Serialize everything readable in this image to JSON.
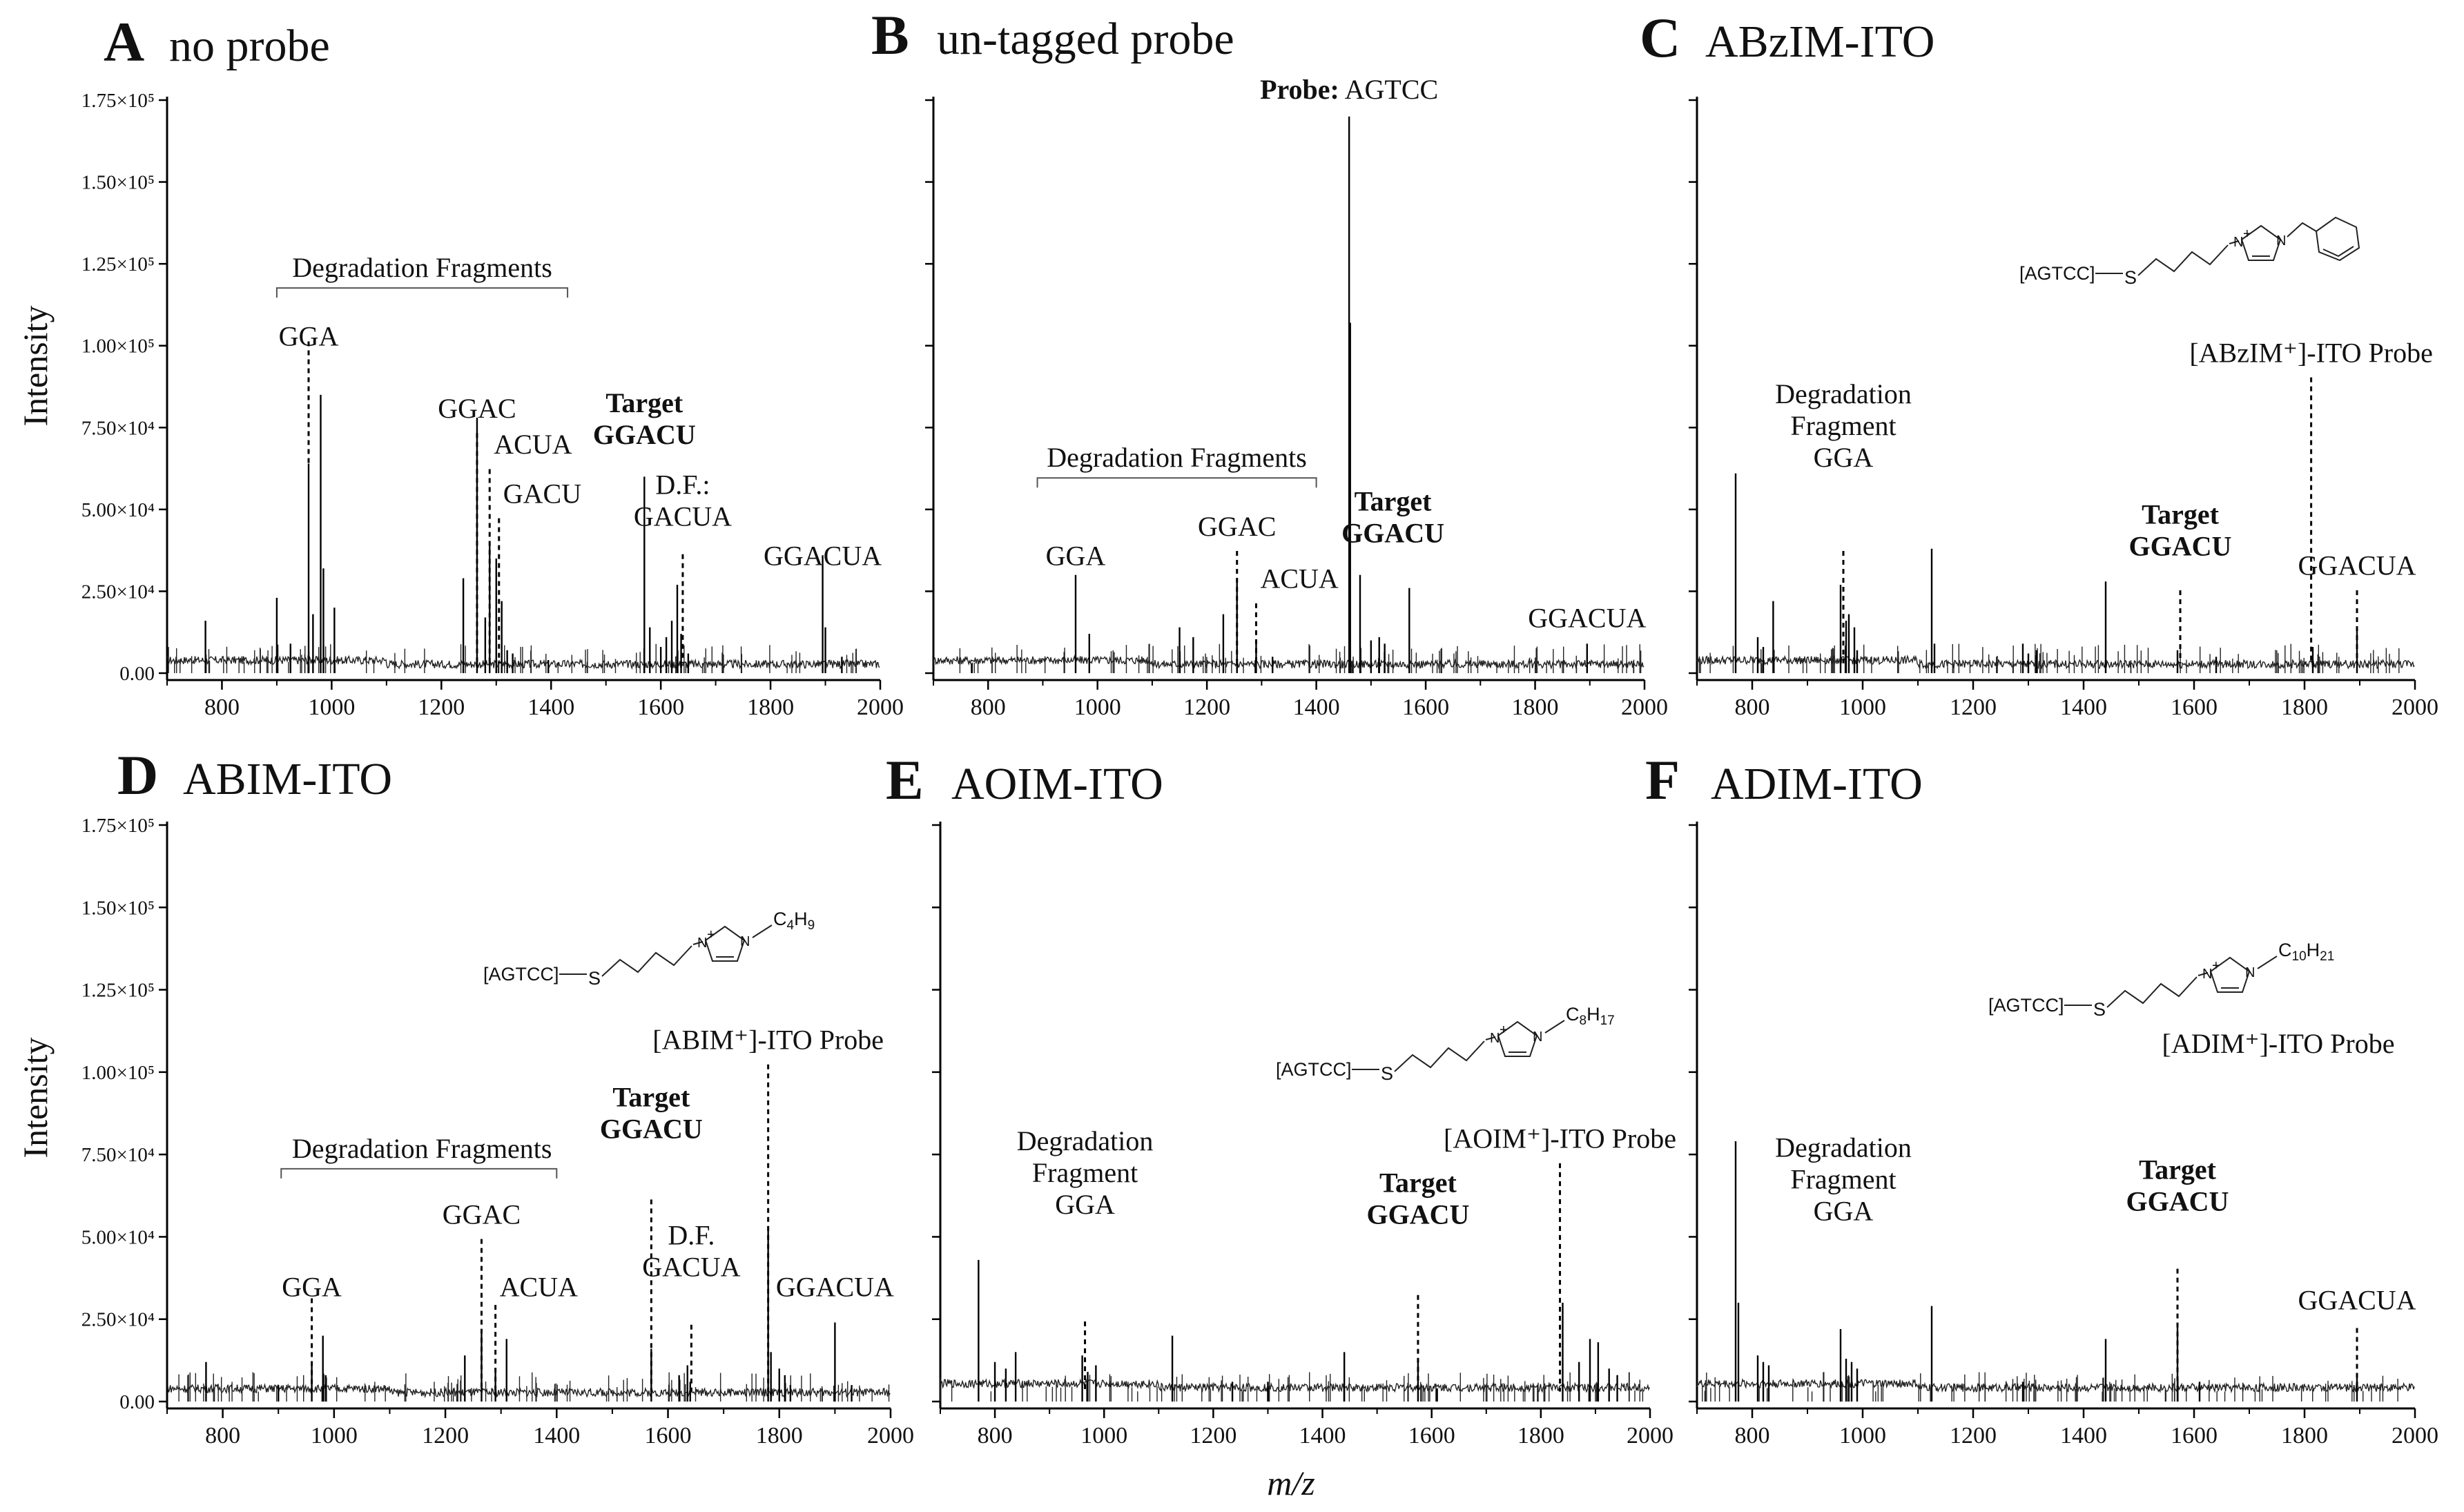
{
  "figure": {
    "x_axis_label": "m/z",
    "y_axis_label": "Intensity",
    "chart_data": [
      {
        "id": "A",
        "letter": "A",
        "title": "no probe",
        "type": "line",
        "xlim": [
          700,
          2000
        ],
        "ylim": [
          0,
          175000
        ],
        "x_ticks": [
          800,
          1000,
          1200,
          1400,
          1600,
          1800,
          2000
        ],
        "y_tick_labels": [
          "0.00",
          "2.50×10⁴",
          "5.00×10⁴",
          "7.50×10⁴",
          "1.00×10⁵",
          "1.25×10⁵",
          "1.50×10⁵",
          "1.75×10⁵"
        ],
        "peaks": [
          [
            770,
            16000
          ],
          [
            900,
            23000
          ],
          [
            925,
            9000
          ],
          [
            958,
            64000
          ],
          [
            966,
            18000
          ],
          [
            980,
            85000
          ],
          [
            985,
            32000
          ],
          [
            1005,
            20000
          ],
          [
            1240,
            29000
          ],
          [
            1265,
            78000
          ],
          [
            1280,
            17000
          ],
          [
            1288,
            40000
          ],
          [
            1300,
            35000
          ],
          [
            1310,
            22000
          ],
          [
            1320,
            7000
          ],
          [
            1330,
            6000
          ],
          [
            1395,
            4000
          ],
          [
            1570,
            60000
          ],
          [
            1580,
            14000
          ],
          [
            1600,
            8000
          ],
          [
            1610,
            11000
          ],
          [
            1620,
            16000
          ],
          [
            1630,
            27000
          ],
          [
            1637,
            12000
          ],
          [
            1650,
            6000
          ],
          [
            1895,
            36000
          ],
          [
            1900,
            14000
          ],
          [
            1930,
            5000
          ]
        ],
        "annotations": [
          {
            "lines": [
              "Degradation Fragments"
            ],
            "x": 1165,
            "y": 121000,
            "bracket": [
              900,
              1430
            ],
            "bold": false
          },
          {
            "lines": [
              "GGA"
            ],
            "x": 958,
            "y": 100000,
            "line_top": 103000,
            "line_bottom": 64000,
            "bold": false
          },
          {
            "lines": [
              "GGAC"
            ],
            "x": 1265,
            "y": 78000,
            "line_top": 75000,
            "line_bottom": 3000,
            "bold": false
          },
          {
            "lines": [
              "ACUA"
            ],
            "x": 1288,
            "y": 67000,
            "line_top": 64000,
            "line_bottom": 3000,
            "bold": false,
            "anchor": "start"
          },
          {
            "lines": [
              "GACU"
            ],
            "x": 1305,
            "y": 52000,
            "line_top": 49000,
            "line_bottom": 3000,
            "bold": false,
            "anchor": "start"
          },
          {
            "lines": [
              "Target",
              "GGACU"
            ],
            "x": 1570,
            "y": 70000,
            "line_top": null,
            "line_bottom": null,
            "bold": true
          },
          {
            "lines": [
              "D.F.:",
              "GACUA"
            ],
            "x": 1640,
            "y": 45000,
            "line_top": 38000,
            "line_bottom": 3000,
            "bold": false
          },
          {
            "lines": [
              "GGACUA"
            ],
            "x": 1895,
            "y": 33000,
            "line_top": null,
            "line_bottom": null,
            "bold": false
          }
        ]
      },
      {
        "id": "B",
        "letter": "B",
        "title": "un-tagged probe",
        "type": "line",
        "xlim": [
          700,
          2000
        ],
        "ylim": [
          0,
          175000
        ],
        "x_ticks": [
          800,
          1000,
          1200,
          1400,
          1600,
          1800,
          2000
        ],
        "y_tick_labels": [],
        "peaks": [
          [
            770,
            3000
          ],
          [
            960,
            30000
          ],
          [
            985,
            12000
          ],
          [
            1150,
            14000
          ],
          [
            1175,
            11000
          ],
          [
            1230,
            18000
          ],
          [
            1255,
            29000
          ],
          [
            1290,
            9000
          ],
          [
            1320,
            5000
          ],
          [
            1460,
            170000
          ],
          [
            1462,
            107000
          ],
          [
            1480,
            30000
          ],
          [
            1500,
            10000
          ],
          [
            1515,
            11000
          ],
          [
            1525,
            9000
          ],
          [
            1570,
            26000
          ],
          [
            1895,
            9000
          ]
        ],
        "annotations": [
          {
            "lines": [
              "Degradation Fragments"
            ],
            "x": 1145,
            "y": 63000,
            "bracket": [
              890,
              1400
            ],
            "bold": false
          },
          {
            "lines": [
              "GGA"
            ],
            "x": 960,
            "y": 33000,
            "line_top": null,
            "line_bottom": null,
            "bold": false
          },
          {
            "lines": [
              "GGAC"
            ],
            "x": 1255,
            "y": 42000,
            "line_top": 39000,
            "line_bottom": 3000,
            "bold": false
          },
          {
            "lines": [
              "ACUA"
            ],
            "x": 1290,
            "y": 26000,
            "line_top": 23000,
            "line_bottom": 3000,
            "bold": false,
            "anchor": "start"
          },
          {
            "lines": [
              "Target",
              "GGACU"
            ],
            "x": 1540,
            "y": 40000,
            "line_top": null,
            "line_bottom": null,
            "bold": true
          },
          {
            "lines": [
              "GGACUA"
            ],
            "x": 1895,
            "y": 14000,
            "line_top": null,
            "line_bottom": null,
            "bold": false
          }
        ],
        "probe_label": {
          "bold": "Probe:",
          "text": " AGTCC"
        }
      },
      {
        "id": "C",
        "letter": "C",
        "title": "ABzIM-ITO",
        "type": "line",
        "xlim": [
          700,
          2000
        ],
        "ylim": [
          0,
          175000
        ],
        "x_ticks": [
          800,
          1000,
          1200,
          1400,
          1600,
          1800,
          2000
        ],
        "y_tick_labels": [],
        "peaks": [
          [
            770,
            61000
          ],
          [
            810,
            11000
          ],
          [
            820,
            8000
          ],
          [
            838,
            22000
          ],
          [
            960,
            27000
          ],
          [
            970,
            16000
          ],
          [
            975,
            18000
          ],
          [
            985,
            14000
          ],
          [
            990,
            7000
          ],
          [
            1125,
            38000
          ],
          [
            1130,
            9000
          ],
          [
            1290,
            9000
          ],
          [
            1300,
            6000
          ],
          [
            1315,
            7000
          ],
          [
            1440,
            28000
          ],
          [
            1570,
            7000
          ],
          [
            1640,
            5000
          ],
          [
            1815,
            8000
          ],
          [
            1895,
            13000
          ]
        ],
        "annotations": [
          {
            "lines": [
              "Degradation",
              "Fragment",
              "GGA"
            ],
            "x": 965,
            "y": 63000,
            "line_top": 39000,
            "line_bottom": 3000,
            "bold": false
          },
          {
            "lines": [
              "Target",
              "GGACU"
            ],
            "x": 1575,
            "y": 36000,
            "line_top": 27000,
            "line_bottom": 3000,
            "bold": true
          },
          {
            "lines": [
              "[ABzIM⁺]-ITO Probe"
            ],
            "x": 1812,
            "y": 95000,
            "line_top": 92000,
            "line_bottom": 3000,
            "bold": false
          },
          {
            "lines": [
              "GGACUA"
            ],
            "x": 1895,
            "y": 30000,
            "line_top": 27000,
            "line_bottom": 3000,
            "bold": false
          }
        ],
        "structure": {
          "tag": "[AGTCC]",
          "atom_s": "S",
          "atom_n": "N",
          "charge": "+",
          "substituent": "benzyl"
        }
      },
      {
        "id": "D",
        "letter": "D",
        "title": "ABIM-ITO",
        "type": "line",
        "xlim": [
          700,
          2000
        ],
        "ylim": [
          0,
          175000
        ],
        "x_ticks": [
          800,
          1000,
          1200,
          1400,
          1600,
          1800,
          2000
        ],
        "y_tick_labels": [
          "0.00",
          "2.50×10⁴",
          "5.00×10⁴",
          "7.50×10⁴",
          "1.00×10⁵",
          "1.25×10⁵",
          "1.50×10⁵",
          "1.75×10⁵"
        ],
        "peaks": [
          [
            770,
            12000
          ],
          [
            900,
            5000
          ],
          [
            960,
            11000
          ],
          [
            980,
            20000
          ],
          [
            985,
            8000
          ],
          [
            1235,
            14000
          ],
          [
            1265,
            22000
          ],
          [
            1290,
            10000
          ],
          [
            1310,
            19000
          ],
          [
            1570,
            16000
          ],
          [
            1620,
            8000
          ],
          [
            1635,
            11000
          ],
          [
            1640,
            6000
          ],
          [
            1780,
            53000
          ],
          [
            1785,
            15000
          ],
          [
            1800,
            10000
          ],
          [
            1810,
            8000
          ],
          [
            1820,
            5000
          ],
          [
            1900,
            24000
          ],
          [
            1930,
            5000
          ]
        ],
        "annotations": [
          {
            "lines": [
              "Degradation Fragments"
            ],
            "x": 1158,
            "y": 74000,
            "bracket": [
              905,
              1400
            ],
            "bold": false
          },
          {
            "lines": [
              "GGA"
            ],
            "x": 960,
            "y": 32000,
            "line_top": 33000,
            "line_bottom": 3000,
            "bold": false
          },
          {
            "lines": [
              "GGAC"
            ],
            "x": 1265,
            "y": 54000,
            "line_top": 51000,
            "line_bottom": 3000,
            "bold": false
          },
          {
            "lines": [
              "ACUA"
            ],
            "x": 1290,
            "y": 32000,
            "line_top": 31000,
            "line_bottom": 3000,
            "bold": false,
            "anchor": "start"
          },
          {
            "lines": [
              "Target",
              "GGACU"
            ],
            "x": 1570,
            "y": 80000,
            "line_top": 63000,
            "line_bottom": 3000,
            "bold": true
          },
          {
            "lines": [
              "D.F.",
              "GACUA"
            ],
            "x": 1642,
            "y": 38000,
            "line_top": 25000,
            "line_bottom": 3000,
            "bold": false
          },
          {
            "lines": [
              "[ABIM⁺]-ITO Probe"
            ],
            "x": 1780,
            "y": 107000,
            "line_top": 104000,
            "line_bottom": 3000,
            "bold": false
          },
          {
            "lines": [
              "GGACUA"
            ],
            "x": 1900,
            "y": 32000,
            "line_top": null,
            "line_bottom": null,
            "bold": false
          }
        ],
        "structure": {
          "tag": "[AGTCC]",
          "atom_s": "S",
          "atom_n": "N",
          "charge": "+",
          "chain": "C",
          "chain_sub1": "4",
          "chain_mid": "H",
          "chain_sub2": "9"
        }
      },
      {
        "id": "E",
        "letter": "E",
        "title": "AOIM-ITO",
        "type": "line",
        "xlim": [
          700,
          2000
        ],
        "ylim": [
          0,
          175000
        ],
        "x_ticks": [
          800,
          1000,
          1200,
          1400,
          1600,
          1800,
          2000
        ],
        "y_tick_labels": [],
        "peaks": [
          [
            770,
            43000
          ],
          [
            800,
            12000
          ],
          [
            820,
            10000
          ],
          [
            838,
            15000
          ],
          [
            960,
            14000
          ],
          [
            970,
            9000
          ],
          [
            985,
            11000
          ],
          [
            1125,
            20000
          ],
          [
            1235,
            6000
          ],
          [
            1300,
            6000
          ],
          [
            1440,
            15000
          ],
          [
            1575,
            13000
          ],
          [
            1610,
            4000
          ],
          [
            1840,
            30000
          ],
          [
            1870,
            12000
          ],
          [
            1890,
            19000
          ],
          [
            1905,
            18000
          ],
          [
            1925,
            10000
          ],
          [
            1940,
            8000
          ]
        ],
        "annotations": [
          {
            "lines": [
              "Degradation",
              "Fragment",
              "GGA"
            ],
            "x": 965,
            "y": 57000,
            "line_top": 26000,
            "line_bottom": 3000,
            "bold": false
          },
          {
            "lines": [
              "Target",
              "GGACU"
            ],
            "x": 1575,
            "y": 54000,
            "line_top": 34000,
            "line_bottom": 3000,
            "bold": true
          },
          {
            "lines": [
              "[AOIM⁺]-ITO Probe"
            ],
            "x": 1835,
            "y": 77000,
            "line_top": 74000,
            "line_bottom": 3000,
            "bold": false
          }
        ],
        "structure": {
          "tag": "[AGTCC]",
          "atom_s": "S",
          "atom_n": "N",
          "charge": "+",
          "chain": "C",
          "chain_sub1": "8",
          "chain_mid": "H",
          "chain_sub2": "17"
        }
      },
      {
        "id": "F",
        "letter": "F",
        "title": "ADIM-ITO",
        "type": "line",
        "xlim": [
          700,
          2000
        ],
        "ylim": [
          0,
          175000
        ],
        "x_ticks": [
          800,
          1000,
          1200,
          1400,
          1600,
          1800,
          2000
        ],
        "y_tick_labels": [],
        "peaks": [
          [
            770,
            79000
          ],
          [
            775,
            30000
          ],
          [
            810,
            14000
          ],
          [
            820,
            12000
          ],
          [
            830,
            11000
          ],
          [
            960,
            22000
          ],
          [
            970,
            13000
          ],
          [
            980,
            12000
          ],
          [
            990,
            10000
          ],
          [
            1125,
            29000
          ],
          [
            1290,
            6000
          ],
          [
            1440,
            19000
          ],
          [
            1570,
            23000
          ],
          [
            1610,
            6000
          ],
          [
            1895,
            8000
          ]
        ],
        "annotations": [
          {
            "lines": [
              "Degradation",
              "Fragment",
              "GGA"
            ],
            "x": 965,
            "y": 55000,
            "line_top": null,
            "line_bottom": null,
            "bold": false
          },
          {
            "lines": [
              "Target",
              "GGACU"
            ],
            "x": 1570,
            "y": 58000,
            "line_top": 42000,
            "line_bottom": 3000,
            "bold": true
          },
          {
            "lines": [
              "GGACUA"
            ],
            "x": 1895,
            "y": 28000,
            "line_top": 24000,
            "line_bottom": 3000,
            "bold": false
          }
        ],
        "probe_text": "[ADIM⁺]-ITO Probe",
        "structure": {
          "tag": "[AGTCC]",
          "atom_s": "S",
          "atom_n": "N",
          "charge": "+",
          "chain": "C",
          "chain_sub1": "10",
          "chain_mid": "H",
          "chain_sub2": "21"
        }
      }
    ]
  }
}
